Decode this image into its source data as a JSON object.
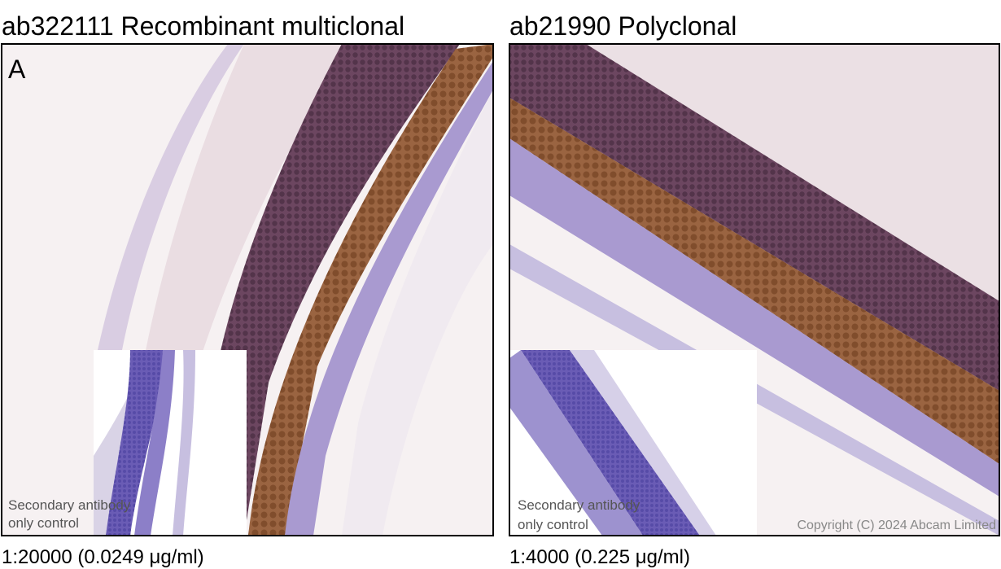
{
  "panels": [
    {
      "title": "ab322111 Recombinant multiclonal",
      "label": "A",
      "inset_caption": [
        "Secondary antibody",
        "only control"
      ],
      "dilution": "1:20000 (0.0249 μg/ml)"
    },
    {
      "title": "ab21990 Polyclonal",
      "inset_caption": [
        "Secondary antibody",
        "only control"
      ],
      "dilution": "1:4000 (0.225 μg/ml)",
      "copyright": "Copyright (C) 2024 Abcam Limited"
    }
  ]
}
